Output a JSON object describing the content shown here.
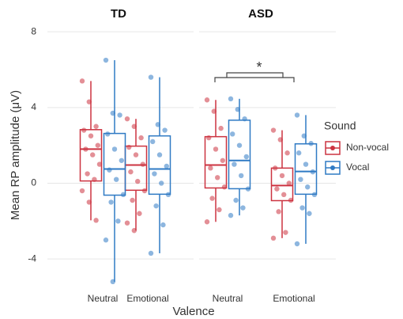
{
  "chart_data": {
    "type": "box",
    "facets": [
      "TD",
      "ASD"
    ],
    "categories": [
      "Neutral",
      "Emotional",
      "Neutral",
      "Emotional"
    ],
    "xlabel": "Valence",
    "ylabel": "Mean RP amplitude (μV)",
    "ylim": [
      -5.5,
      8.3
    ],
    "yticks": [
      -4,
      0,
      4,
      8
    ],
    "grid": true,
    "legend": {
      "title": "Sound",
      "position": "right"
    },
    "annotations": [
      {
        "text": "*"
      }
    ],
    "series": [
      {
        "name": "Non-vocal",
        "color": "#cc3340",
        "values": [
          {
            "min": -1.96,
            "q1": 0.12,
            "median": 1.8,
            "q3": 2.83,
            "max": 5.4,
            "points": [
              5.4,
              4.3,
              3.0,
              2.8,
              2.5,
              2.0,
              1.8,
              1.5,
              1.0,
              0.5,
              0.2,
              -0.4,
              -1.0,
              -1.96
            ]
          },
          {
            "min": -2.5,
            "q1": -0.37,
            "median": 0.96,
            "q3": 1.96,
            "max": 3.4,
            "points": [
              3.4,
              3.0,
              2.4,
              1.9,
              1.5,
              1.0,
              0.6,
              0.1,
              -0.4,
              -0.9,
              -1.6,
              -2.1,
              -2.5
            ]
          },
          {
            "min": -2.04,
            "q1": -0.25,
            "median": 0.96,
            "q3": 2.46,
            "max": 4.4,
            "points": [
              4.4,
              3.8,
              2.9,
              2.4,
              1.8,
              1.2,
              0.8,
              0.3,
              -0.2,
              -0.8,
              -1.4,
              -2.04
            ]
          },
          {
            "min": -2.9,
            "q1": -0.92,
            "median": -0.12,
            "q3": 0.8,
            "max": 2.8,
            "points": [
              2.8,
              2.3,
              1.6,
              0.8,
              0.4,
              0.0,
              -0.3,
              -0.6,
              -0.9,
              -1.5,
              -2.6,
              -2.9
            ]
          }
        ]
      },
      {
        "name": "Vocal",
        "color": "#2f7ac4",
        "values": [
          {
            "min": -5.2,
            "q1": -0.63,
            "median": 0.75,
            "q3": 2.63,
            "max": 6.5,
            "points": [
              6.5,
              3.7,
              3.6,
              2.6,
              1.8,
              1.2,
              0.7,
              0.2,
              -0.6,
              -1.0,
              -2.0,
              -3.0,
              -5.2
            ]
          },
          {
            "min": -3.7,
            "q1": -0.58,
            "median": 0.75,
            "q3": 2.5,
            "max": 5.6,
            "points": [
              5.6,
              3.1,
              2.8,
              2.2,
              1.5,
              0.9,
              0.5,
              0.0,
              -0.6,
              -1.2,
              -2.2,
              -3.7
            ]
          },
          {
            "min": -1.7,
            "q1": -0.29,
            "median": 1.2,
            "q3": 3.33,
            "max": 4.46,
            "points": [
              4.46,
              3.9,
              3.4,
              2.6,
              2.0,
              1.4,
              1.0,
              0.4,
              -0.3,
              -0.9,
              -1.3,
              -1.7
            ]
          },
          {
            "min": -3.2,
            "q1": -0.58,
            "median": 0.62,
            "q3": 2.08,
            "max": 3.6,
            "points": [
              3.6,
              2.5,
              2.1,
              1.6,
              1.0,
              0.6,
              0.2,
              -0.2,
              -0.6,
              -1.3,
              -1.6,
              -3.2
            ]
          }
        ]
      }
    ]
  }
}
